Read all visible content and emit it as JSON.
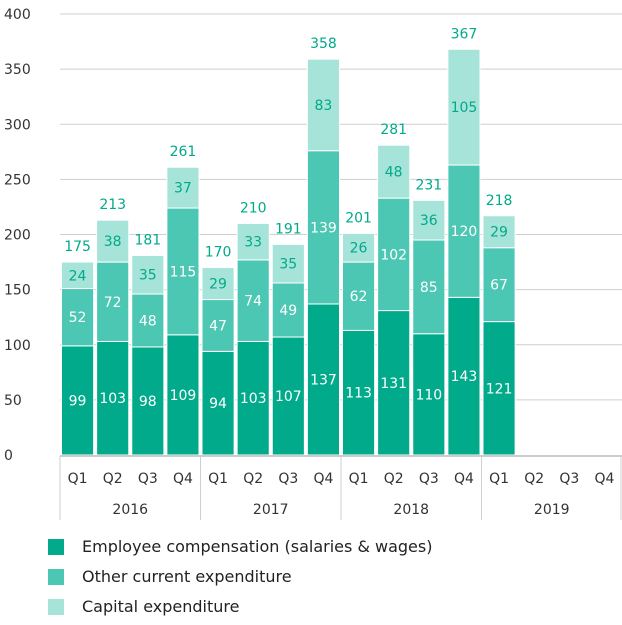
{
  "chart_data": {
    "type": "bar",
    "stacked": true,
    "categories": [
      "Q1",
      "Q2",
      "Q3",
      "Q4",
      "Q1",
      "Q2",
      "Q3",
      "Q4",
      "Q1",
      "Q2",
      "Q3",
      "Q4",
      "Q1",
      "Q2",
      "Q3",
      "Q4"
    ],
    "year_groups": [
      "2016",
      "2017",
      "2018",
      "2019"
    ],
    "series": [
      {
        "name": "Employee compensation (salaries & wages)",
        "color": "#00aa8a",
        "values": [
          99,
          103,
          98,
          109,
          94,
          103,
          107,
          137,
          113,
          131,
          110,
          143,
          121,
          null,
          null,
          null
        ]
      },
      {
        "name": "Other current expenditure",
        "color": "#4cc7b3",
        "values": [
          52,
          72,
          48,
          115,
          47,
          74,
          49,
          139,
          62,
          102,
          85,
          120,
          67,
          null,
          null,
          null
        ]
      },
      {
        "name": "Capital expenditure",
        "color": "#a6e3d9",
        "values": [
          24,
          38,
          35,
          37,
          29,
          33,
          35,
          83,
          26,
          48,
          36,
          105,
          29,
          null,
          null,
          null
        ]
      }
    ],
    "totals": [
      175,
      213,
      181,
      261,
      170,
      210,
      191,
      358,
      201,
      281,
      231,
      367,
      218,
      null,
      null,
      null
    ],
    "ylim": [
      0,
      400
    ],
    "yticks": [
      0,
      50,
      100,
      150,
      200,
      250,
      300,
      350,
      400
    ],
    "grid": true,
    "legend_position": "bottom",
    "label_color": "#00aa8a"
  }
}
